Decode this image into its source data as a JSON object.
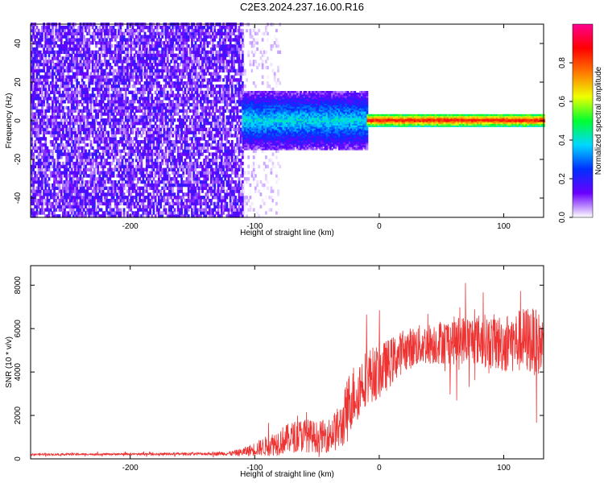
{
  "figure": {
    "title": "C2E3.2024.237.16.00.R16"
  },
  "chart_data": [
    {
      "type": "heatmap",
      "title": "",
      "xlabel": "Height of straight line (km)",
      "ylabel": "Frequency (Hz)",
      "xlim": [
        -280,
        132
      ],
      "ylim": [
        -50,
        50
      ],
      "x_ticks": [
        -200,
        -100,
        0,
        100
      ],
      "y_ticks": [
        -40,
        -20,
        0,
        20,
        40
      ],
      "grid": false,
      "regions": [
        {
          "x_from": -280,
          "x_to": -110,
          "freq_spread": [
            -50,
            50
          ],
          "amplitude_range": [
            0.05,
            0.2
          ]
        },
        {
          "x_from": -110,
          "x_to": -80,
          "freq_spread": [
            -50,
            50
          ],
          "amplitude_range": [
            0.0,
            0.05
          ]
        },
        {
          "x_from": -110,
          "x_to": -10,
          "freq_spread": [
            -15,
            15
          ],
          "amplitude_range": [
            0.15,
            0.45
          ]
        },
        {
          "x_from": -10,
          "x_to": 132,
          "freq_spread": [
            -3,
            3
          ],
          "amplitude_range": [
            0.5,
            0.95
          ]
        }
      ],
      "colorbar": {
        "label": "Normalized spectral amplitude",
        "range": [
          0,
          1
        ],
        "ticks": [
          0.0,
          0.2,
          0.4,
          0.6,
          0.8
        ],
        "colors": [
          "#ffffff",
          "#6a00ff",
          "#0030ff",
          "#00d8ff",
          "#00ff30",
          "#f0ff00",
          "#ff7800",
          "#ff0000",
          "#ff0090"
        ]
      }
    },
    {
      "type": "line",
      "title": "",
      "xlabel": "Height of straight line (km)",
      "ylabel": "SNR (10 * v/v)",
      "xlim": [
        -280,
        132
      ],
      "ylim": [
        0,
        8900
      ],
      "x_ticks": [
        -200,
        -100,
        0,
        100
      ],
      "y_ticks": [
        0,
        2000,
        4000,
        6000,
        8000
      ],
      "grid": false,
      "series": [
        {
          "color": "#ee3333",
          "x": [
            -280,
            -250,
            -200,
            -150,
            -120,
            -110,
            -100,
            -90,
            -80,
            -70,
            -60,
            -50,
            -40,
            -30,
            -25,
            -20,
            -10,
            0,
            10,
            20,
            30,
            40,
            50,
            60,
            70,
            80,
            90,
            100,
            110,
            120,
            132
          ],
          "y": [
            200,
            210,
            220,
            230,
            250,
            300,
            450,
            600,
            800,
            1000,
            1100,
            1000,
            1100,
            1500,
            2500,
            3000,
            3800,
            4000,
            4500,
            5000,
            5200,
            5300,
            5400,
            5450,
            5500,
            5500,
            5400,
            5300,
            5400,
            5500,
            5200
          ],
          "noise": [
            30,
            30,
            30,
            40,
            60,
            120,
            200,
            300,
            400,
            450,
            500,
            450,
            500,
            700,
            900,
            900,
            800,
            800,
            700,
            600,
            600,
            600,
            650,
            700,
            700,
            750,
            800,
            850,
            900,
            1000,
            900
          ]
        }
      ]
    }
  ]
}
